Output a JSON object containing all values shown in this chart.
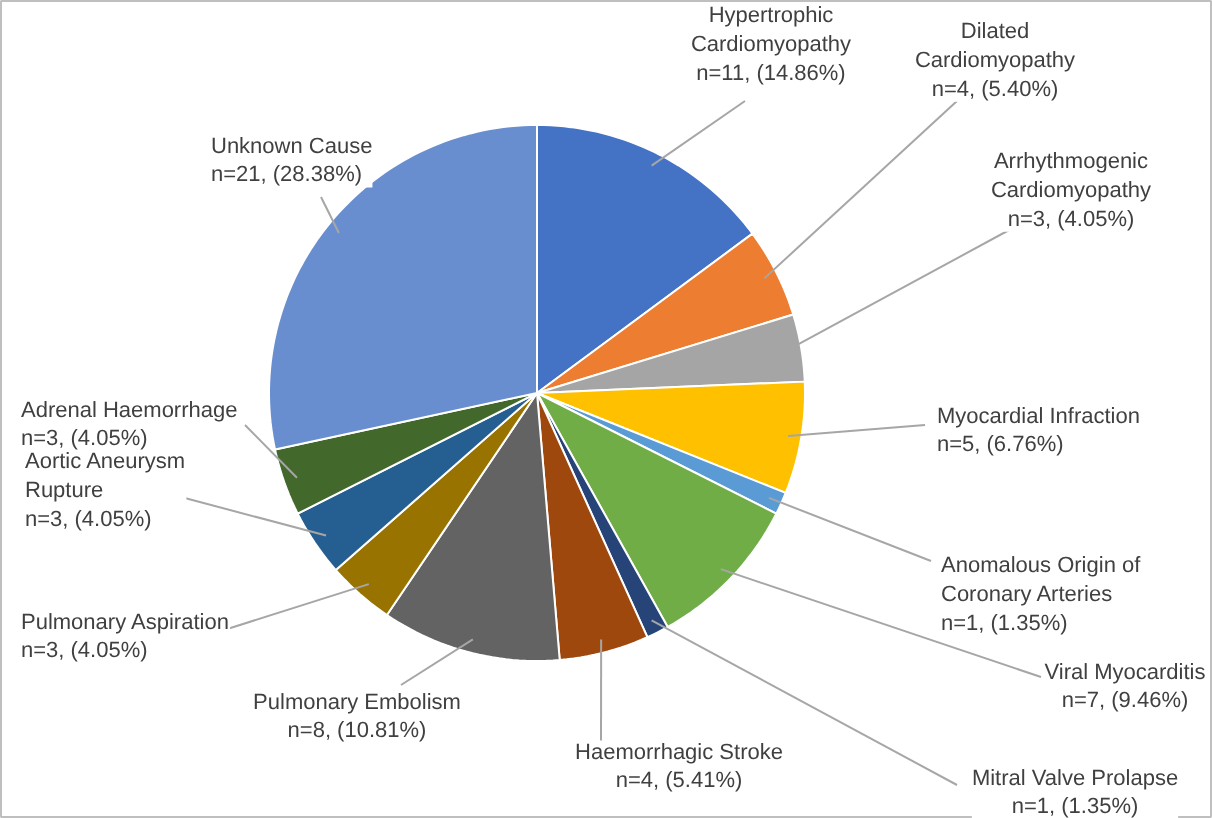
{
  "chart_data": {
    "type": "pie",
    "categories": [
      "Hypertrophic\nCardiomyopathy",
      "Dilated\nCardiomyopathy",
      "Arrhythmogenic\nCardiomyopathy",
      "Myocardial Infraction",
      "Anomalous Origin of\nCoronary Arteries",
      "Viral Myocarditis",
      "Mitral Valve Prolapse",
      "Haemorrhagic Stroke",
      "Pulmonary Embolism",
      "Pulmonary Aspiration",
      "Aortic Aneurysm\nRupture",
      "Adrenal Haemorrhage",
      "Unknown Cause"
    ],
    "values": [
      11,
      4,
      3,
      5,
      1,
      7,
      1,
      4,
      8,
      3,
      3,
      3,
      21
    ],
    "value_labels": [
      "n=11, (14.86%)",
      "n=4, (5.40%)",
      "n=3, (4.05%)",
      "n=5, (6.76%)",
      "n=1, (1.35%)",
      "n=7, (9.46%)",
      "n=1, (1.35%)",
      "n=4, (5.41%)",
      "n=8, (10.81%)",
      "n=3, (4.05%)",
      "n=3, (4.05%)",
      "n=3, (4.05%)",
      "n=21, (28.38%)"
    ],
    "colors": [
      "#4472c4",
      "#ed7d31",
      "#a5a5a5",
      "#ffc000",
      "#5b9bd5",
      "#70ad47",
      "#264478",
      "#9e480e",
      "#636363",
      "#997300",
      "#255e91",
      "#43682b",
      "#698ed0"
    ]
  }
}
